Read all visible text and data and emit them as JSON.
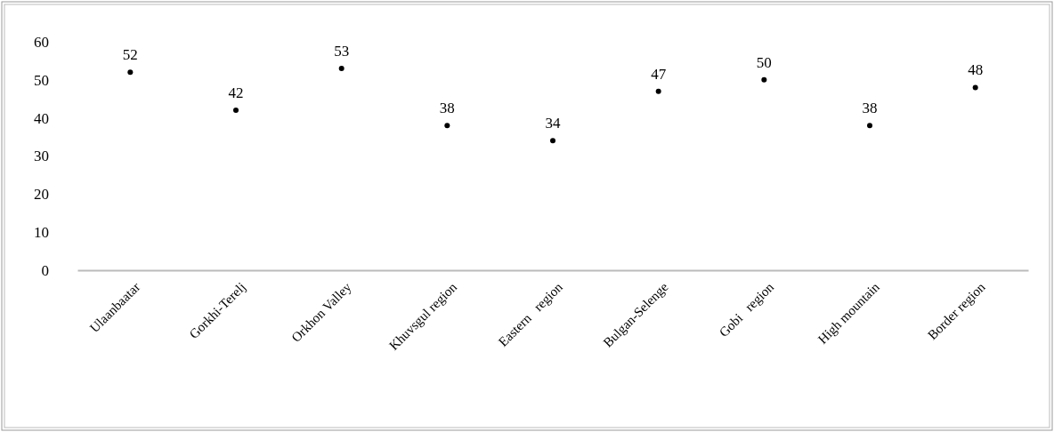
{
  "chart_data": {
    "type": "scatter",
    "categories": [
      "Ulaanbaatar",
      "Gorkhi-Terelj",
      "Orkhon Valley",
      "Khuvsgul region",
      "Eastern   region",
      "Bulgan-Selenge",
      "Gobi   region",
      "High mountain",
      "Border region"
    ],
    "values": [
      52,
      42,
      53,
      38,
      34,
      47,
      50,
      38,
      48
    ],
    "color": "#000000",
    "marker": "circle",
    "data_labels": true,
    "ylim": [
      0,
      60
    ],
    "yticks": [
      0,
      10,
      20,
      30,
      40,
      50,
      60
    ],
    "grid": false
  }
}
